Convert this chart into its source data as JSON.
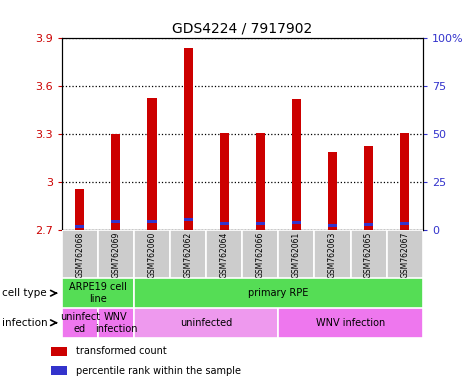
{
  "title": "GDS4224 / 7917902",
  "samples": [
    "GSM762068",
    "GSM762069",
    "GSM762060",
    "GSM762062",
    "GSM762064",
    "GSM762066",
    "GSM762061",
    "GSM762063",
    "GSM762065",
    "GSM762067"
  ],
  "red_values": [
    2.96,
    3.3,
    3.53,
    3.84,
    3.31,
    3.31,
    3.52,
    3.19,
    3.23,
    3.31
  ],
  "blue_values": [
    2.725,
    2.755,
    2.755,
    2.768,
    2.742,
    2.742,
    2.748,
    2.728,
    2.738,
    2.745
  ],
  "bar_bottom": 2.7,
  "ylim_left": [
    2.7,
    3.9
  ],
  "ylim_right": [
    0,
    100
  ],
  "yticks_left": [
    2.7,
    3.0,
    3.3,
    3.6,
    3.9
  ],
  "yticks_right": [
    0,
    25,
    50,
    75,
    100
  ],
  "ytick_labels_left": [
    "2.7",
    "3",
    "3.3",
    "3.6",
    "3.9"
  ],
  "ytick_labels_right": [
    "0",
    "25",
    "50",
    "75",
    "100%"
  ],
  "red_color": "#cc0000",
  "blue_color": "#3333cc",
  "bar_width": 0.25,
  "blue_bar_height": 0.018,
  "cell_type_groups": [
    {
      "label": "ARPE19 cell\nline",
      "start": 0,
      "end": 2,
      "color": "#55dd55"
    },
    {
      "label": "primary RPE",
      "start": 2,
      "end": 10,
      "color": "#55dd55"
    }
  ],
  "infection_groups": [
    {
      "label": "uninfect\ned",
      "start": 0,
      "end": 1,
      "color": "#ee77ee"
    },
    {
      "label": "WNV\ninfection",
      "start": 1,
      "end": 2,
      "color": "#ee77ee"
    },
    {
      "label": "uninfected",
      "start": 2,
      "end": 6,
      "color": "#ee99ee"
    },
    {
      "label": "WNV infection",
      "start": 6,
      "end": 10,
      "color": "#ee77ee"
    }
  ],
  "legend_items": [
    {
      "color": "#cc0000",
      "label": "transformed count"
    },
    {
      "color": "#3333cc",
      "label": "percentile rank within the sample"
    }
  ],
  "row_label_cell_type": "cell type",
  "row_label_infection": "infection"
}
